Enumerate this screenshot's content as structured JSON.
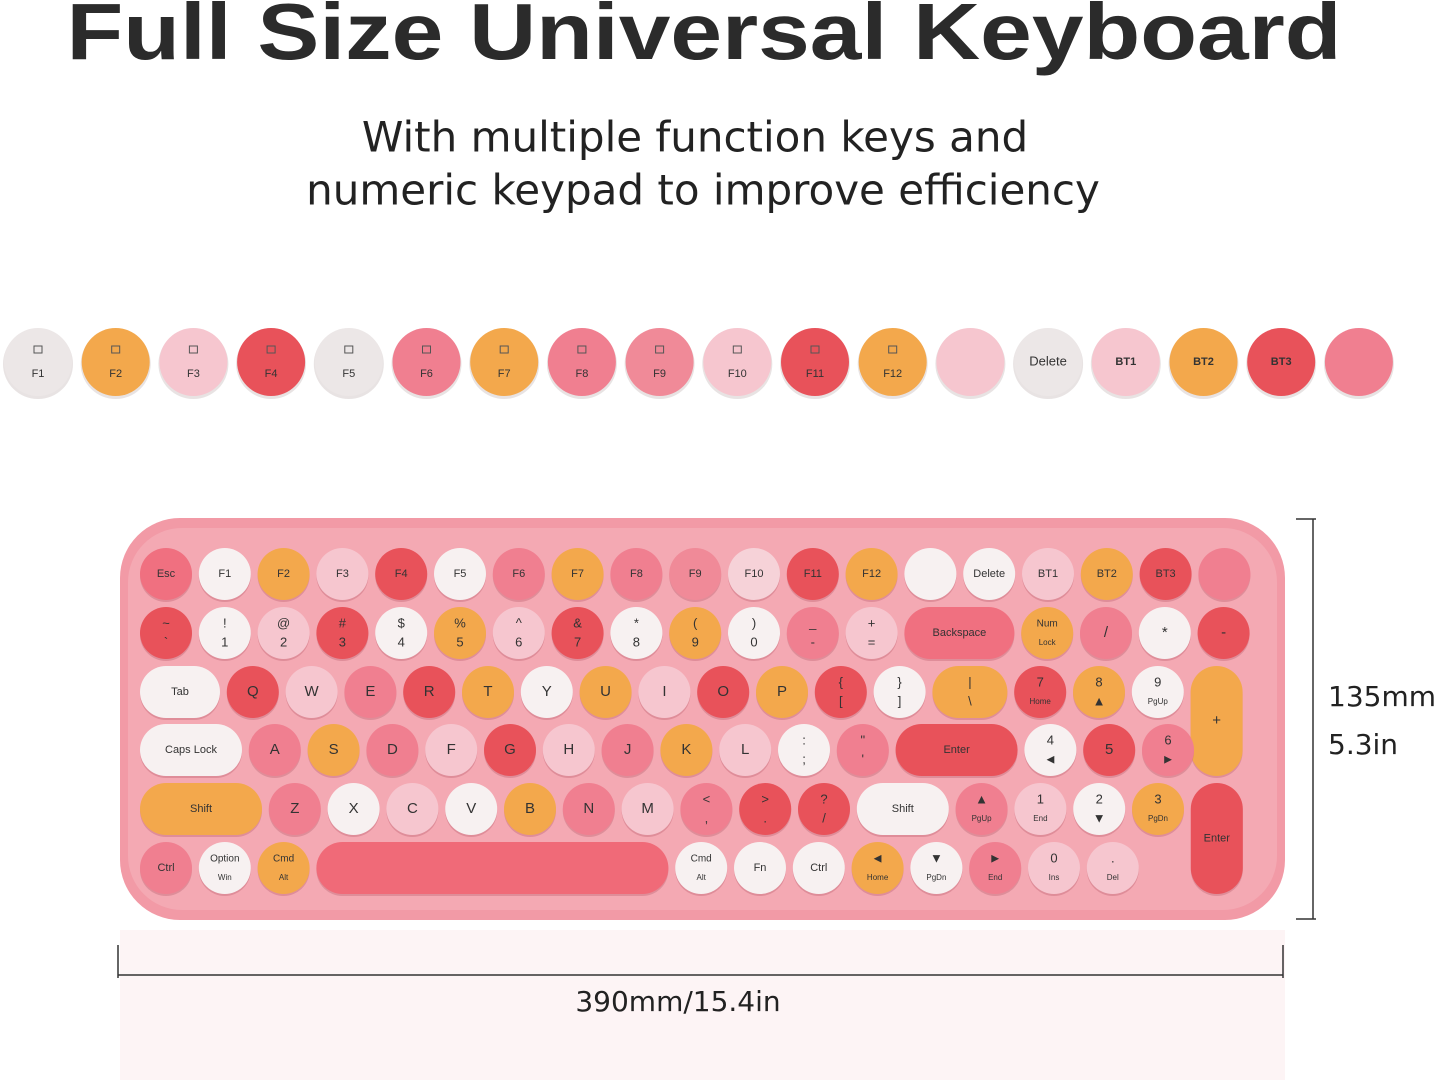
{
  "header": {
    "title": "Full Size Universal Keyboard",
    "subtitle": [
      "With multiple function keys and",
      "numeric keypad to improve efficiency"
    ]
  },
  "function_keys": [
    {
      "label": "F1",
      "color": "#ece7e7"
    },
    {
      "label": "F2",
      "color": "#f3a84c"
    },
    {
      "label": "F3",
      "color": "#f6c6cf"
    },
    {
      "label": "F4",
      "color": "#e8525a"
    },
    {
      "label": "F5",
      "color": "#ece7e7"
    },
    {
      "label": "F6",
      "color": "#f07f90"
    },
    {
      "label": "F7",
      "color": "#f3a84c"
    },
    {
      "label": "F8",
      "color": "#f07f90"
    },
    {
      "label": "F9",
      "color": "#f08a98"
    },
    {
      "label": "F10",
      "color": "#f6c6cf"
    },
    {
      "label": "F11",
      "color": "#e8525a"
    },
    {
      "label": "F12",
      "color": "#f3a84c"
    },
    {
      "label": null,
      "color": "#f6c6cf"
    },
    {
      "label": "Delete",
      "color": "#ece7e7"
    },
    {
      "label": "BT1",
      "color": "#f6c6cf"
    },
    {
      "label": "BT2",
      "color": "#f3a84c"
    },
    {
      "label": "BT3",
      "color": "#e8525a"
    },
    {
      "label": null,
      "color": "#f07f90"
    }
  ],
  "keyboard": {
    "rows": [
      [
        {
          "label": "Esc",
          "color": "#f07080"
        },
        {
          "label": "F1",
          "color": "#f7f1f1"
        },
        {
          "label": "F2",
          "color": "#f3a84c"
        },
        {
          "label": "F3",
          "color": "#f6c6cf"
        },
        {
          "label": "F4",
          "color": "#e8525a"
        },
        {
          "label": "F5",
          "color": "#f7f1f1"
        },
        {
          "label": "F6",
          "color": "#f07f90"
        },
        {
          "label": "F7",
          "color": "#f3a84c"
        },
        {
          "label": "F8",
          "color": "#f07f90"
        },
        {
          "label": "F9",
          "color": "#f08a98"
        },
        {
          "label": "F10",
          "color": "#f6d2d8"
        },
        {
          "label": "F11",
          "color": "#e8525a"
        },
        {
          "label": "F12",
          "color": "#f3a84c"
        },
        {
          "label": null,
          "color": "#f7f1f1"
        },
        {
          "label": "Delete",
          "color": "#f7f1f1"
        },
        {
          "label": "BT1",
          "color": "#f6c6cf"
        },
        {
          "label": "BT2",
          "color": "#f3a84c"
        },
        {
          "label": "BT3",
          "color": "#e8525a"
        },
        {
          "label": null,
          "color": "#f07f90"
        }
      ],
      [
        {
          "top": "~",
          "bottom": "`",
          "color": "#e8525a"
        },
        {
          "top": "!",
          "bottom": "1",
          "color": "#f7f1f1"
        },
        {
          "top": "@",
          "bottom": "2",
          "color": "#f6c6cf"
        },
        {
          "top": "#",
          "bottom": "3",
          "color": "#e8525a"
        },
        {
          "top": "$",
          "bottom": "4",
          "color": "#f7f1f1"
        },
        {
          "top": "%",
          "bottom": "5",
          "color": "#f3a84c"
        },
        {
          "top": "^",
          "bottom": "6",
          "color": "#f6c6cf"
        },
        {
          "top": "&",
          "bottom": "7",
          "color": "#e8525a"
        },
        {
          "top": "*",
          "bottom": "8",
          "color": "#f7f1f1"
        },
        {
          "top": "(",
          "bottom": "9",
          "color": "#f3a84c"
        },
        {
          "top": ")",
          "bottom": "0",
          "color": "#f7f1f1"
        },
        {
          "top": "_",
          "bottom": "-",
          "color": "#f07f90"
        },
        {
          "top": "+",
          "bottom": "=",
          "color": "#f6c6cf"
        },
        {
          "label": "Backspace",
          "color": "#f07080"
        },
        {
          "top": "Num",
          "bottom": "Lock",
          "color": "#f3a84c"
        },
        {
          "label": "/",
          "color": "#f07f90"
        },
        {
          "label": "*",
          "color": "#f7f1f1"
        },
        {
          "label": "-",
          "color": "#e8525a"
        }
      ],
      [
        {
          "label": "Tab",
          "color": "#f7f1f1"
        },
        {
          "label": "Q",
          "color": "#e8525a"
        },
        {
          "label": "W",
          "color": "#f6c6cf"
        },
        {
          "label": "E",
          "color": "#f07f90"
        },
        {
          "label": "R",
          "color": "#e8525a"
        },
        {
          "label": "T",
          "color": "#f3a84c"
        },
        {
          "label": "Y",
          "color": "#f7f1f1"
        },
        {
          "label": "U",
          "color": "#f3a84c"
        },
        {
          "label": "I",
          "color": "#f6c6cf"
        },
        {
          "label": "O",
          "color": "#e8525a"
        },
        {
          "label": "P",
          "color": "#f3a84c"
        },
        {
          "top": "{",
          "bottom": "[",
          "color": "#e8525a"
        },
        {
          "top": "}",
          "bottom": "]",
          "color": "#f7f1f1"
        },
        {
          "top": "|",
          "bottom": "\\",
          "color": "#f3a84c"
        },
        {
          "top": "7",
          "bottom": "Home",
          "color": "#e8525a"
        },
        {
          "top": "8",
          "bottom": "▲",
          "color": "#f3a84c"
        },
        {
          "top": "9",
          "bottom": "PgUp",
          "color": "#f7f1f1"
        },
        {
          "label": "+",
          "color": "#f3a84c"
        }
      ],
      [
        {
          "label": "Caps Lock",
          "color": "#f7f1f1"
        },
        {
          "label": "A",
          "color": "#f07f90"
        },
        {
          "label": "S",
          "color": "#f3a84c"
        },
        {
          "label": "D",
          "color": "#f07f90"
        },
        {
          "label": "F",
          "color": "#f6c6cf"
        },
        {
          "label": "G",
          "color": "#e8525a"
        },
        {
          "label": "H",
          "color": "#f6c6cf"
        },
        {
          "label": "J",
          "color": "#f07f90"
        },
        {
          "label": "K",
          "color": "#f3a84c"
        },
        {
          "label": "L",
          "color": "#f6c6cf"
        },
        {
          "top": ":",
          "bottom": ";",
          "color": "#f7f1f1"
        },
        {
          "top": "\"",
          "bottom": "'",
          "color": "#f07f90"
        },
        {
          "label": "Enter",
          "color": "#e8525a"
        },
        {
          "top": "4",
          "bottom": "◄",
          "color": "#f7f1f1"
        },
        {
          "label": "5",
          "color": "#e8525a"
        },
        {
          "top": "6",
          "bottom": "►",
          "color": "#f07f90"
        }
      ],
      [
        {
          "label": "Shift",
          "color": "#f3a84c"
        },
        {
          "label": "Z",
          "color": "#f07f90"
        },
        {
          "label": "X",
          "color": "#f7f1f1"
        },
        {
          "label": "C",
          "color": "#f6c6cf"
        },
        {
          "label": "V",
          "color": "#f7f1f1"
        },
        {
          "label": "B",
          "color": "#f3a84c"
        },
        {
          "label": "N",
          "color": "#f07f90"
        },
        {
          "label": "M",
          "color": "#f6c6cf"
        },
        {
          "top": "<",
          "bottom": ",",
          "color": "#f07f90"
        },
        {
          "top": ">",
          "bottom": ".",
          "color": "#e8525a"
        },
        {
          "top": "?",
          "bottom": "/",
          "color": "#e8525a"
        },
        {
          "label": "Shift",
          "color": "#f7f1f1"
        },
        {
          "top": "▲",
          "bottom": "PgUp",
          "color": "#f07f90"
        },
        {
          "top": "1",
          "bottom": "End",
          "color": "#f6c6cf"
        },
        {
          "top": "2",
          "bottom": "▼",
          "color": "#f7f1f1"
        },
        {
          "top": "3",
          "bottom": "PgDn",
          "color": "#f3a84c"
        },
        {
          "label": "Enter",
          "color": "#e8525a"
        }
      ],
      [
        {
          "label": "Ctrl",
          "color": "#f07f90"
        },
        {
          "top": "Option",
          "bottom": "Win",
          "color": "#f7f1f1"
        },
        {
          "top": "Cmd",
          "bottom": "Alt",
          "color": "#f3a84c"
        },
        {
          "label": null,
          "color": "#f06a78"
        },
        {
          "top": "Cmd",
          "bottom": "Alt",
          "color": "#f7f1f1"
        },
        {
          "label": "Fn",
          "color": "#f7f1f1"
        },
        {
          "label": "Ctrl",
          "color": "#f7f1f1"
        },
        {
          "top": "◄",
          "bottom": "Home",
          "color": "#f3a84c"
        },
        {
          "top": "▼",
          "bottom": "PgDn",
          "color": "#f7f1f1"
        },
        {
          "top": "►",
          "bottom": "End",
          "color": "#f07f90"
        },
        {
          "top": "0",
          "bottom": "Ins",
          "color": "#f6c6cf"
        },
        {
          "top": ".",
          "bottom": "Del",
          "color": "#f6c6cf"
        }
      ]
    ]
  },
  "dimensions": {
    "height_mm": "135mm",
    "height_in": "5.3in",
    "width": "390mm/15.4in"
  }
}
